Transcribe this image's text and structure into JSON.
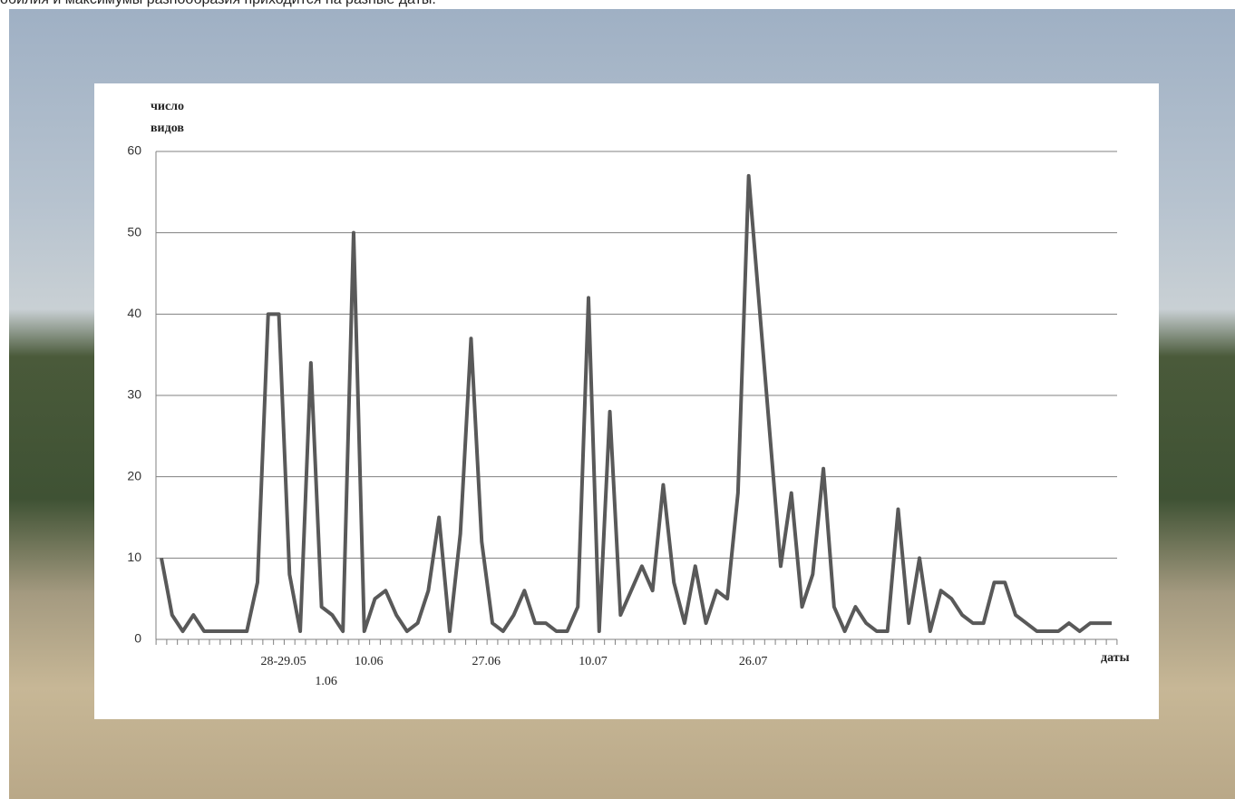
{
  "header_text": "обилия и максимумы разнообразия  приходится на разные даты.",
  "chart_data": {
    "type": "line",
    "y_label": "число видов",
    "x_label": "даты",
    "categories": [
      null,
      null,
      null,
      null,
      null,
      null,
      null,
      null,
      null,
      null,
      null,
      "28-29.05",
      null,
      null,
      null,
      "1.06",
      null,
      null,
      null,
      "10.06",
      null,
      null,
      null,
      null,
      null,
      null,
      null,
      null,
      null,
      null,
      "27.06",
      null,
      null,
      null,
      null,
      null,
      null,
      null,
      null,
      null,
      "10.07",
      null,
      null,
      null,
      null,
      null,
      null,
      null,
      null,
      null,
      null,
      null,
      null,
      null,
      null,
      "26.07",
      null,
      null,
      null,
      null,
      null,
      null,
      null,
      null,
      null,
      null,
      null,
      null,
      null,
      null,
      null,
      null,
      null,
      null,
      null,
      null,
      null,
      null,
      null,
      null,
      null,
      null,
      null,
      null,
      null,
      null,
      null,
      null,
      null,
      null
    ],
    "values": [
      10,
      3,
      1,
      3,
      1,
      1,
      1,
      1,
      1,
      7,
      40,
      40,
      8,
      1,
      34,
      4,
      3,
      1,
      50,
      1,
      5,
      6,
      3,
      1,
      2,
      6,
      15,
      1,
      13,
      37,
      12,
      2,
      1,
      3,
      6,
      2,
      2,
      1,
      1,
      4,
      42,
      1,
      28,
      3,
      6,
      9,
      6,
      19,
      7,
      2,
      9,
      2,
      6,
      5,
      18,
      57,
      41,
      25,
      9,
      18,
      4,
      8,
      21,
      4,
      1,
      4,
      2,
      1,
      1,
      16,
      2,
      10,
      1,
      6,
      5,
      3,
      2,
      2,
      7,
      7,
      3,
      2,
      1,
      1,
      1,
      2,
      1,
      2,
      2,
      2
    ],
    "color": "#595959",
    "ylim": [
      0,
      60
    ],
    "yticks": [
      0,
      10,
      20,
      30,
      40,
      50,
      60
    ],
    "grid": true
  }
}
